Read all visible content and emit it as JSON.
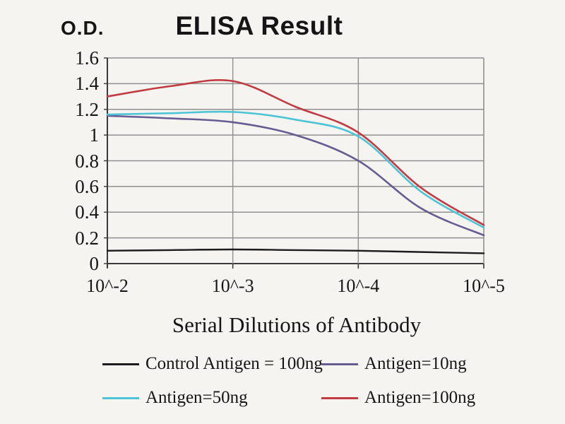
{
  "title": "ELISA Result",
  "y_axis_label": "O.D.",
  "x_axis_label": "Serial Dilutions of Antibody",
  "colors": {
    "background": "#f5f4f0",
    "grid": "#8f8f8f",
    "axis": "#3a3a3a",
    "text": "#151515",
    "control": "#1c1c1c",
    "antigen_10ng": "#665c92",
    "antigen_50ng": "#4cc4d6",
    "antigen_100ng": "#c23a42"
  },
  "legend": {
    "items": [
      {
        "label": "Control Antigen = 100ng",
        "color": "#1c1c1c"
      },
      {
        "label": "Antigen=10ng",
        "color": "#665c92"
      },
      {
        "label": "Antigen=50ng",
        "color": "#4cc4d6"
      },
      {
        "label": "Antigen=100ng",
        "color": "#c23a42"
      }
    ]
  },
  "chart_data": {
    "type": "line",
    "title": "ELISA Result",
    "xlabel": "Serial Dilutions of Antibody",
    "ylabel": "O.D.",
    "x_tick_labels": [
      "10^-2",
      "10^-3",
      "10^-4",
      "10^-5"
    ],
    "x_tick_exponents": [
      -2,
      -3,
      -4,
      -5
    ],
    "y_tick_labels": [
      "0",
      "0.2",
      "0.4",
      "0.6",
      "0.8",
      "1",
      "1.2",
      "1.4",
      "1.6"
    ],
    "ylim": [
      0,
      1.6
    ],
    "grid": true,
    "legend_position": "bottom",
    "x_exponents": [
      -2,
      -2.5,
      -3,
      -3.5,
      -4,
      -4.5,
      -5
    ],
    "series": [
      {
        "name": "Control Antigen = 100ng",
        "color": "#1c1c1c",
        "width": 2.4,
        "values": [
          0.1,
          0.105,
          0.11,
          0.105,
          0.1,
          0.09,
          0.08
        ]
      },
      {
        "name": "Antigen=10ng",
        "color": "#665c92",
        "width": 2.6,
        "values": [
          1.15,
          1.13,
          1.1,
          1.0,
          0.8,
          0.43,
          0.22
        ]
      },
      {
        "name": "Antigen=50ng",
        "color": "#4cc4d6",
        "width": 2.6,
        "values": [
          1.16,
          1.17,
          1.18,
          1.12,
          0.99,
          0.56,
          0.28
        ]
      },
      {
        "name": "Antigen=100ng",
        "color": "#c23a42",
        "width": 2.6,
        "values": [
          1.3,
          1.38,
          1.42,
          1.22,
          1.02,
          0.59,
          0.3
        ]
      }
    ]
  }
}
